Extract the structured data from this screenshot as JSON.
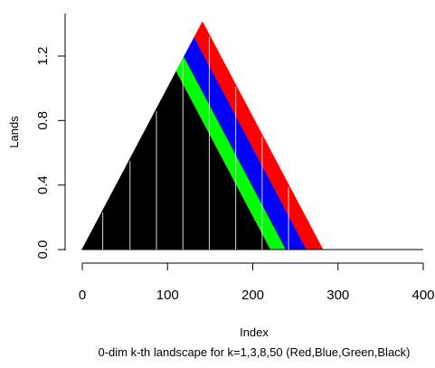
{
  "chart_data": {
    "type": "area",
    "title": "",
    "xlabel": "Index",
    "ylabel": "Lands",
    "caption": "0-dim k-th landscape for k=1,3,8,50 (Red,Blue,Green,Black)",
    "xlim": [
      0,
      400
    ],
    "ylim": [
      0,
      1.4
    ],
    "x_ticks": [
      0,
      100,
      200,
      300,
      400
    ],
    "x_tick_labels": [
      "0",
      "100",
      "200",
      "300",
      "400"
    ],
    "y_ticks": [
      0.0,
      0.4,
      0.8,
      1.2
    ],
    "y_tick_labels": [
      "0.0",
      "0.4",
      "0.8",
      "1.2"
    ],
    "grid": false,
    "series": [
      {
        "name": "k=1",
        "color": "#ff0000",
        "x": [
          0,
          141,
          282,
          400
        ],
        "y": [
          0,
          1.41,
          0,
          0
        ]
      },
      {
        "name": "k=3",
        "color": "#0000ff",
        "x": [
          0,
          131,
          262,
          400
        ],
        "y": [
          0,
          1.31,
          0,
          0
        ]
      },
      {
        "name": "k=8",
        "color": "#00ff00",
        "x": [
          0,
          119,
          238,
          400
        ],
        "y": [
          0,
          1.19,
          0,
          0
        ]
      },
      {
        "name": "k=50",
        "color": "#000000",
        "x": [
          0,
          110,
          220,
          400
        ],
        "y": [
          0,
          1.1,
          0,
          0
        ]
      }
    ]
  }
}
